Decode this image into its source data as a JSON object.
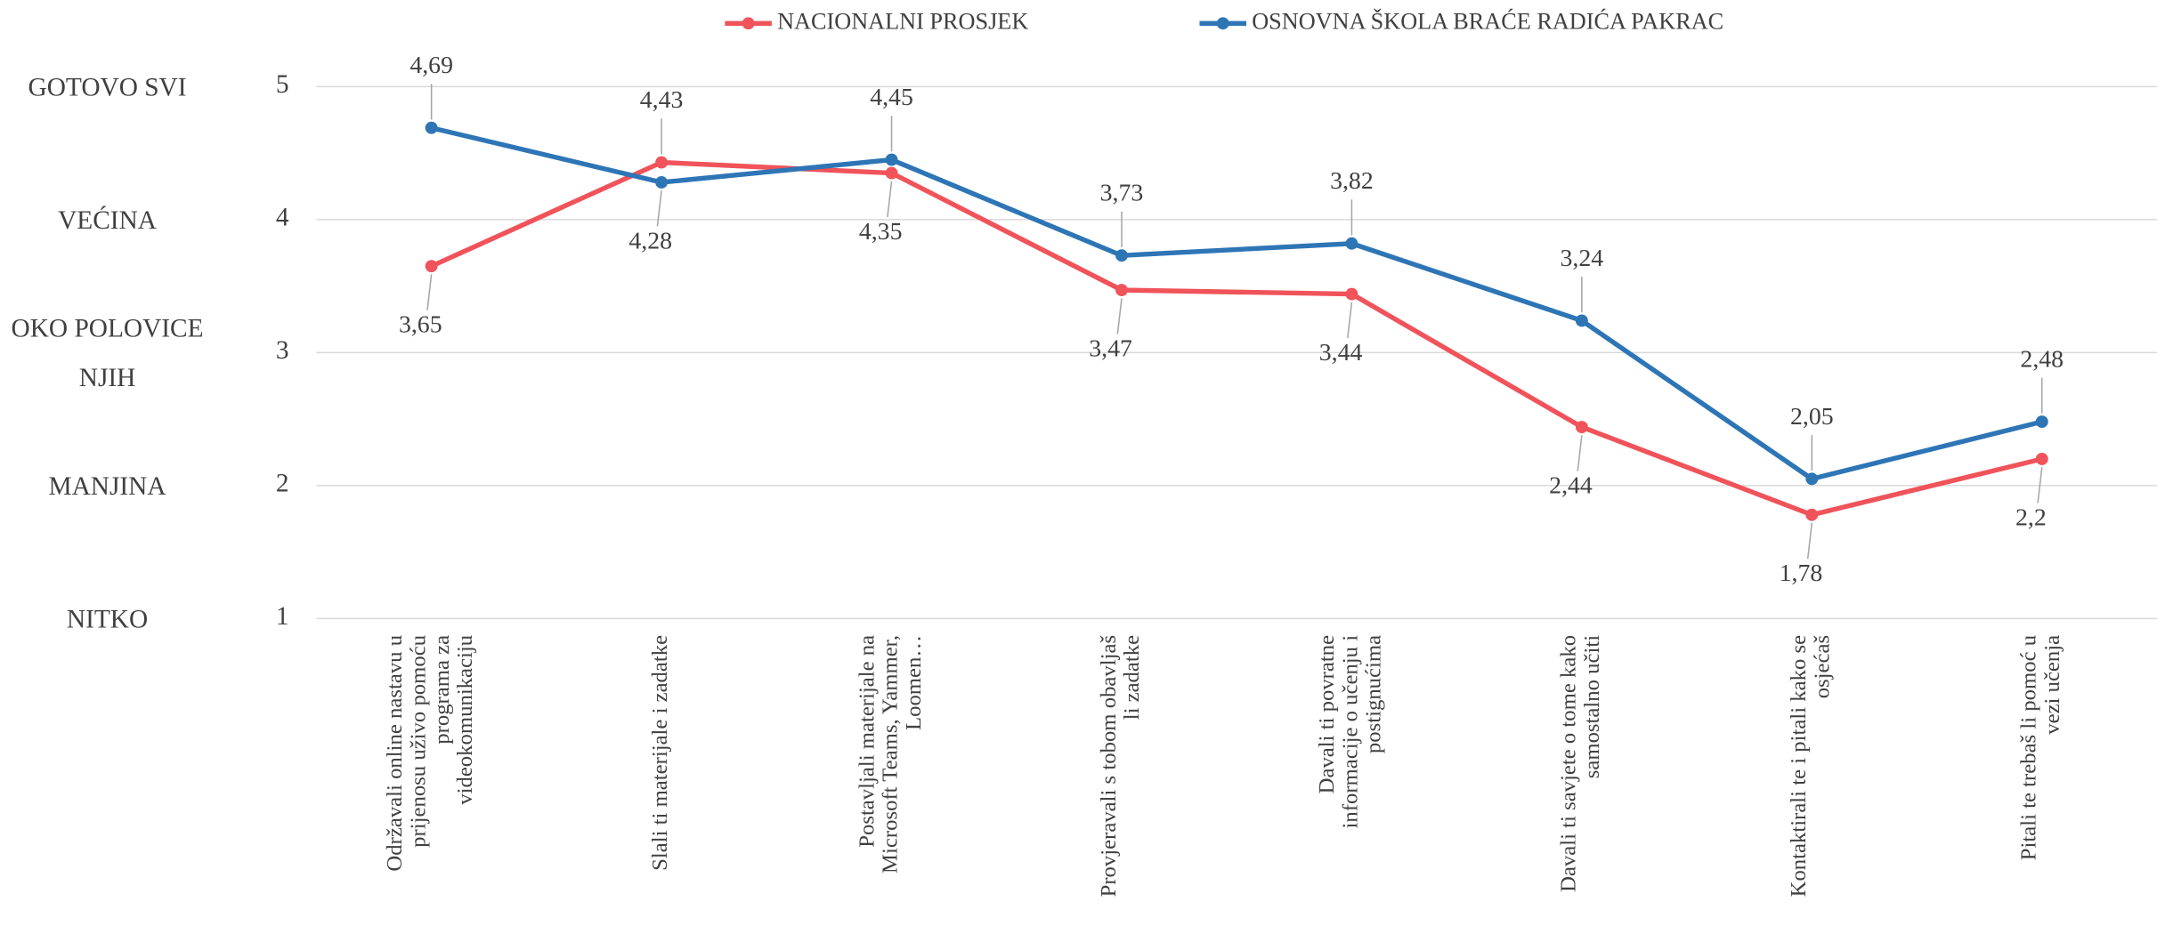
{
  "chart_data": {
    "type": "line",
    "categories": [
      "Održavali online nastavu u\nprijenosu uživo pomoću\nprograma za\nvideokomunikaciju",
      "Slali ti materijale i zadatke",
      "Postavljali materijale na\nMicrosoft Teams, Yammer,\nLoomen…",
      "Provjeravali s tobom obavljaš\nli zadatke",
      "Davali ti povratne\ninformacije o učenju i\npostignućima",
      "Davali ti savjete o tome kako\nsamostalno učiti",
      "Kontaktirali te i pitali kako se\nosjećaš",
      "Pitali te trebaš li pomoć u\nvezi učenja"
    ],
    "series": [
      {
        "name": "NACIONALNI PROSJEK",
        "color": "#f0535a",
        "values": [
          3.65,
          4.43,
          4.35,
          3.47,
          3.44,
          2.44,
          1.78,
          2.2
        ],
        "value_labels": [
          "3,65",
          "4,43",
          "4,35",
          "3,47",
          "3,44",
          "2,44",
          "1,78",
          "2,2"
        ]
      },
      {
        "name": "OSNOVNA ŠKOLA BRAĆE RADIĆA PAKRAC",
        "color": "#2e75b6",
        "values": [
          4.69,
          4.28,
          4.45,
          3.73,
          3.82,
          3.24,
          2.05,
          2.48
        ],
        "value_labels": [
          "4,69",
          "4,28",
          "4,45",
          "3,73",
          "3,82",
          "3,24",
          "2,05",
          "2,48"
        ]
      }
    ],
    "ylim": [
      1,
      5
    ],
    "yticks": [
      1,
      2,
      3,
      4,
      5
    ],
    "grid": true,
    "legend": "top",
    "y_level_labels": [
      {
        "value": 5,
        "label": "GOTOVO SVI"
      },
      {
        "value": 4,
        "label": "VEĆINA"
      },
      {
        "value": 3,
        "label": "OKO POLOVICE\nNJIH"
      },
      {
        "value": 2,
        "label": "MANJINA"
      },
      {
        "value": 1,
        "label": "NITKO"
      }
    ]
  }
}
